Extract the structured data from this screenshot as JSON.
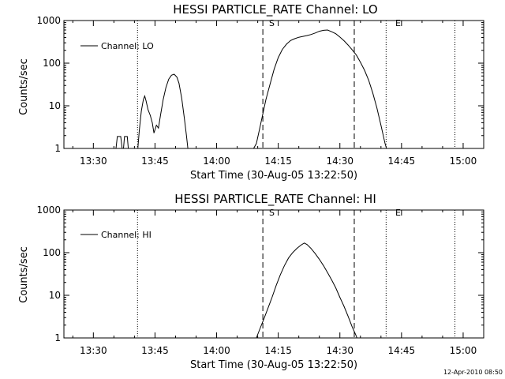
{
  "footer_timestamp": "12-Apr-2010 08:50",
  "chart_data": [
    {
      "type": "line",
      "title": "HESSI PARTICLE_RATE Channel: LO",
      "xlabel": "Start Time (30-Aug-05 13:22:50)",
      "ylabel": "Counts/sec",
      "yscale": "log",
      "ylim": [
        1,
        1000
      ],
      "xlim": [
        "13:22:50",
        "15:05:00"
      ],
      "y_ticks": [
        "1",
        "10",
        "100",
        "1000"
      ],
      "x_ticks": [
        "13:30",
        "13:45",
        "14:00",
        "14:15",
        "14:30",
        "14:45",
        "15:00"
      ],
      "legend": {
        "label": "Channel: LO",
        "position": "top-left"
      },
      "markers": {
        "start_label": "S",
        "end_label": "E"
      },
      "dotted_lines": [
        "13:40:45",
        "14:41:15",
        "14:58:00"
      ],
      "dashed_lines": [
        "14:11:15",
        "14:33:30"
      ],
      "series": [
        {
          "name": "Channel: LO",
          "segments": [
            [
              [
                "13:35:30",
                1
              ],
              [
                "13:35:50",
                1.9
              ],
              [
                "13:36:40",
                1.9
              ],
              [
                "13:37:00",
                1
              ],
              [
                "13:37:20",
                1
              ],
              [
                "13:37:35",
                1.9
              ],
              [
                "13:38:15",
                1.9
              ],
              [
                "13:38:30",
                1
              ]
            ],
            [
              [
                "13:40:50",
                1
              ],
              [
                "13:41:10",
                2.6
              ],
              [
                "13:41:40",
                7.5
              ],
              [
                "13:42:10",
                14
              ],
              [
                "13:42:30",
                17
              ],
              [
                "13:42:50",
                13
              ],
              [
                "13:43:20",
                8
              ],
              [
                "13:43:50",
                6
              ],
              [
                "13:44:20",
                4
              ],
              [
                "13:44:45",
                2.3
              ],
              [
                "13:45:20",
                3.5
              ],
              [
                "13:45:50",
                3
              ],
              [
                "13:46:20",
                6
              ],
              [
                "13:47:00",
                14
              ],
              [
                "13:47:40",
                27
              ],
              [
                "13:48:20",
                42
              ],
              [
                "13:49:00",
                52
              ],
              [
                "13:49:40",
                55
              ],
              [
                "13:50:20",
                47
              ],
              [
                "13:50:50",
                34
              ],
              [
                "13:51:30",
                15
              ],
              [
                "13:52:10",
                5
              ],
              [
                "13:52:40",
                2
              ],
              [
                "13:53:00",
                1
              ]
            ],
            [
              [
                "14:09:00",
                1
              ],
              [
                "14:09:40",
                1.3
              ],
              [
                "14:10:20",
                2.5
              ],
              [
                "14:11:00",
                5
              ],
              [
                "14:12:00",
                14
              ],
              [
                "14:13:00",
                32
              ],
              [
                "14:14:00",
                72
              ],
              [
                "14:15:00",
                135
              ],
              [
                "14:16:00",
                210
              ],
              [
                "14:17:00",
                280
              ],
              [
                "14:18:00",
                340
              ],
              [
                "14:19:00",
                375
              ],
              [
                "14:20:00",
                405
              ],
              [
                "14:21:00",
                425
              ],
              [
                "14:22:00",
                445
              ],
              [
                "14:23:00",
                470
              ],
              [
                "14:24:00",
                510
              ],
              [
                "14:25:00",
                560
              ],
              [
                "14:26:00",
                590
              ],
              [
                "14:27:00",
                600
              ],
              [
                "14:28:00",
                545
              ],
              [
                "14:29:00",
                490
              ],
              [
                "14:30:00",
                410
              ],
              [
                "14:31:00",
                335
              ],
              [
                "14:32:00",
                265
              ],
              [
                "14:33:00",
                205
              ],
              [
                "14:34:00",
                155
              ],
              [
                "14:35:00",
                105
              ],
              [
                "14:36:00",
                68
              ],
              [
                "14:37:00",
                40
              ],
              [
                "14:38:00",
                20
              ],
              [
                "14:39:00",
                9
              ],
              [
                "14:40:00",
                3.5
              ],
              [
                "14:41:00",
                1.3
              ],
              [
                "14:41:20",
                1
              ]
            ]
          ]
        }
      ]
    },
    {
      "type": "line",
      "title": "HESSI PARTICLE_RATE Channel: HI",
      "xlabel": "Start Time (30-Aug-05 13:22:50)",
      "ylabel": "Counts/sec",
      "yscale": "log",
      "ylim": [
        1,
        1000
      ],
      "xlim": [
        "13:22:50",
        "15:05:00"
      ],
      "y_ticks": [
        "1",
        "10",
        "100",
        "1000"
      ],
      "x_ticks": [
        "13:30",
        "13:45",
        "14:00",
        "14:15",
        "14:30",
        "14:45",
        "15:00"
      ],
      "legend": {
        "label": "Channel: HI",
        "position": "top-left"
      },
      "markers": {
        "start_label": "S",
        "end_label": "E"
      },
      "dotted_lines": [
        "13:40:45",
        "14:41:15",
        "14:58:00"
      ],
      "dashed_lines": [
        "14:11:15",
        "14:33:30"
      ],
      "series": [
        {
          "name": "Channel: HI",
          "segments": [
            [
              [
                "14:09:40",
                1
              ],
              [
                "14:10:30",
                1.6
              ],
              [
                "14:11:30",
                2.8
              ],
              [
                "14:12:30",
                5
              ],
              [
                "14:13:30",
                9
              ],
              [
                "14:14:30",
                17
              ],
              [
                "14:15:30",
                30
              ],
              [
                "14:16:30",
                50
              ],
              [
                "14:17:30",
                75
              ],
              [
                "14:18:30",
                100
              ],
              [
                "14:19:30",
                125
              ],
              [
                "14:20:30",
                150
              ],
              [
                "14:21:20",
                168
              ],
              [
                "14:22:00",
                155
              ],
              [
                "14:23:00",
                125
              ],
              [
                "14:24:00",
                95
              ],
              [
                "14:25:00",
                70
              ],
              [
                "14:26:00",
                50
              ],
              [
                "14:27:00",
                34
              ],
              [
                "14:28:00",
                23
              ],
              [
                "14:29:00",
                15
              ],
              [
                "14:30:00",
                9
              ],
              [
                "14:31:00",
                5.5
              ],
              [
                "14:32:00",
                3.2
              ],
              [
                "14:33:00",
                1.8
              ],
              [
                "14:33:50",
                1.2
              ],
              [
                "14:34:10",
                1
              ]
            ]
          ]
        }
      ]
    }
  ]
}
